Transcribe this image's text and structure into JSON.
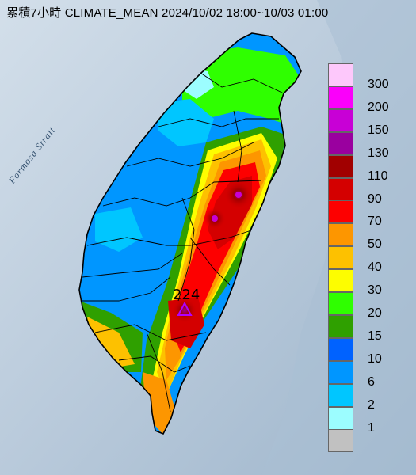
{
  "title": "累積7小時 CLIMATE_MEAN 2024/10/02 18:00~10/03 01:00",
  "sea_label": "Formosa Strait",
  "max_marker": {
    "value": "224",
    "color": "#b000ff"
  },
  "legend": [
    {
      "label": "300",
      "color": "#fdc8fb"
    },
    {
      "label": "200",
      "color": "#fa00fa"
    },
    {
      "label": "150",
      "color": "#c800d6"
    },
    {
      "label": "130",
      "color": "#9a009f"
    },
    {
      "label": "110",
      "color": "#a10000"
    },
    {
      "label": "90",
      "color": "#d40000"
    },
    {
      "label": "70",
      "color": "#fd0000"
    },
    {
      "label": "50",
      "color": "#fd9600"
    },
    {
      "label": "40",
      "color": "#fdc100"
    },
    {
      "label": "30",
      "color": "#fdfd00"
    },
    {
      "label": "20",
      "color": "#2fff00"
    },
    {
      "label": "15",
      "color": "#2fa000"
    },
    {
      "label": "10",
      "color": "#0062ff"
    },
    {
      "label": "6",
      "color": "#0096ff"
    },
    {
      "label": "2",
      "color": "#00c6ff"
    },
    {
      "label": "1",
      "color": "#9cfdff"
    },
    {
      "label": "",
      "color": "#c1c1c1"
    }
  ]
}
